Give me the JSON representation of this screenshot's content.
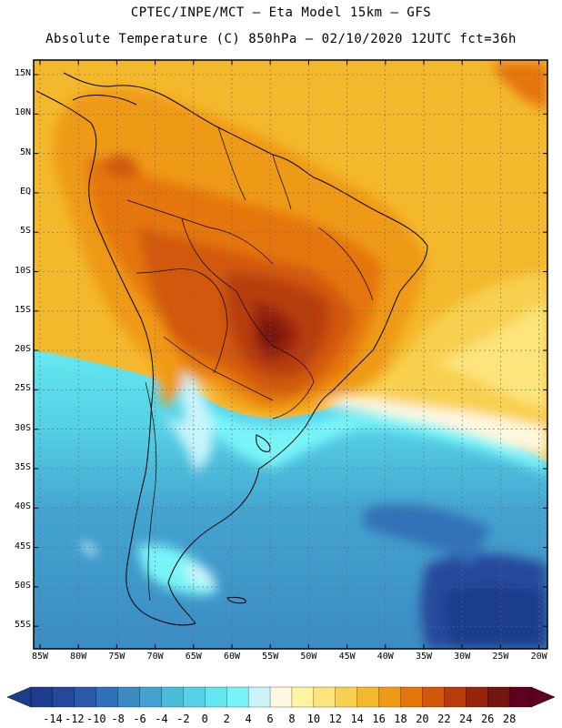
{
  "header": {
    "title_line1": "CPTEC/INPE/MCT –  Eta Model 15km – GFS",
    "title_line2": "Absolute Temperature (C) 850hPa – 02/10/2020 12UTC fct=36h"
  },
  "axes": {
    "lat_labels": [
      "15N",
      "10N",
      "5N",
      "EQ",
      "5S",
      "10S",
      "15S",
      "20S",
      "25S",
      "30S",
      "35S",
      "40S",
      "45S",
      "50S",
      "55S"
    ],
    "lon_labels": [
      "85W",
      "80W",
      "75W",
      "70W",
      "65W",
      "60W",
      "55W",
      "50W",
      "45W",
      "40W",
      "35W",
      "30W",
      "25W",
      "20W"
    ]
  },
  "colorbar": {
    "labels": [
      "-14",
      "-12",
      "-10",
      "-8",
      "-6",
      "-4",
      "-2",
      "0",
      "2",
      "4",
      "6",
      "8",
      "10",
      "12",
      "14",
      "16",
      "18",
      "20",
      "22",
      "24",
      "26",
      "28"
    ],
    "colors": [
      "#1e3c8c",
      "#25489c",
      "#2b5aac",
      "#3072b8",
      "#3b8cc4",
      "#44a3d0",
      "#4cbcdc",
      "#55d2e6",
      "#62e6ef",
      "#78f4f8",
      "#c8f4fa",
      "#fff8e0",
      "#fff4a0",
      "#fde47c",
      "#f8d050",
      "#f4b82c",
      "#ef9a14",
      "#e5760a",
      "#d25808",
      "#b83c0a",
      "#98240c",
      "#761410",
      "#600020"
    ]
  },
  "map": {
    "region": "South America",
    "model": "Eta 15km",
    "variable": "Absolute Temperature 850hPa"
  }
}
